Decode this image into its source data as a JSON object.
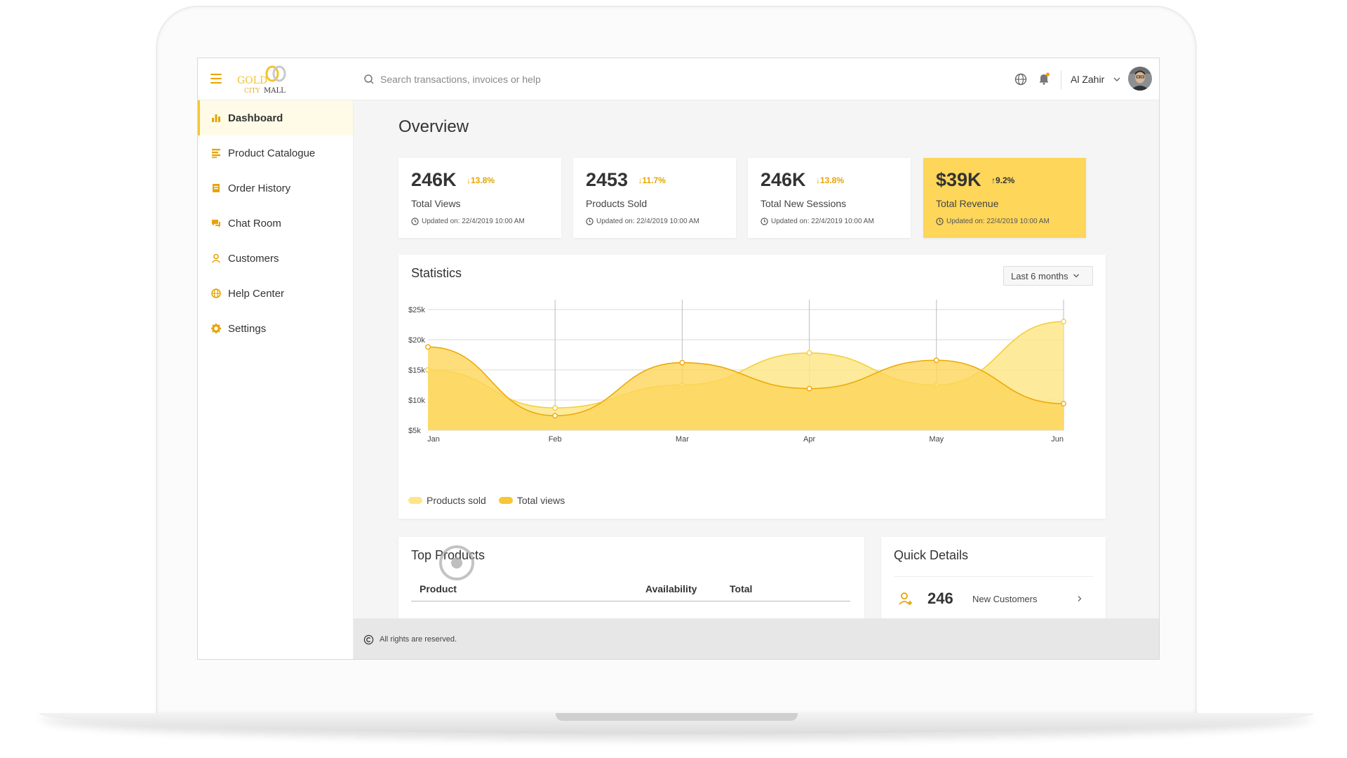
{
  "brand": {
    "logo_line1": "GOLD",
    "logo_line2": "CITY MALL"
  },
  "search": {
    "placeholder": "Search transactions, invoices or help"
  },
  "user": {
    "name": "Al Zahir"
  },
  "sidebar": {
    "items": [
      {
        "label": "Dashboard",
        "icon": "bar-chart-icon",
        "active": true
      },
      {
        "label": "Product Catalogue",
        "icon": "catalogue-icon"
      },
      {
        "label": "Order History",
        "icon": "order-icon"
      },
      {
        "label": "Chat Room",
        "icon": "chat-icon"
      },
      {
        "label": "Customers",
        "icon": "person-icon"
      },
      {
        "label": "Help Center",
        "icon": "globe-icon"
      },
      {
        "label": "Settings",
        "icon": "gear-icon"
      }
    ]
  },
  "overview": {
    "title": "Overview",
    "cards": [
      {
        "value": "246K",
        "change": "↓13.8%",
        "label": "Total Views",
        "updated": "Updated on: 22/4/2019 10:00 AM"
      },
      {
        "value": "2453",
        "change": "↓11.7%",
        "label": "Products Sold",
        "updated": "Updated on: 22/4/2019 10:00 AM"
      },
      {
        "value": "246K",
        "change": "↓13.8%",
        "label": "Total New Sessions",
        "updated": "Updated on: 22/4/2019 10:00 AM"
      },
      {
        "value": "$39K",
        "change": "↑9.2%",
        "label": "Total Revenue",
        "updated": "Updated on: 22/4/2019 10:00 AM"
      }
    ]
  },
  "statistics": {
    "title": "Statistics",
    "range": "Last 6 months"
  },
  "chart_data": {
    "type": "area",
    "categories": [
      "Jan",
      "Feb",
      "Mar",
      "Apr",
      "May",
      "Jun"
    ],
    "y_ticks": [
      "$5k",
      "$10k",
      "$15k",
      "$20k",
      "$25k"
    ],
    "ylim": [
      5000,
      25000
    ],
    "series": [
      {
        "name": "Products sold",
        "color": "#fde68a",
        "stroke": "#f6cf3a",
        "values": [
          15000,
          8700,
          12500,
          17800,
          12500,
          23000
        ]
      },
      {
        "name": "Total views",
        "color": "#fdd65a",
        "stroke": "#eda90a",
        "values": [
          18800,
          7400,
          16200,
          11900,
          16600,
          9400
        ]
      }
    ],
    "grid": true,
    "legend_position": "bottom-left"
  },
  "top_products": {
    "title": "Top Products",
    "columns": [
      "Product",
      "Availability",
      "Total"
    ]
  },
  "quick_details": {
    "title": "Quick Details",
    "rows": [
      {
        "value": "246",
        "label": "New Customers"
      }
    ]
  },
  "footer": {
    "text": "All rights are reserved."
  },
  "colors": {
    "accent": "#f6c634",
    "highlight_card": "#fdd65a",
    "icon": "#e8a400"
  }
}
